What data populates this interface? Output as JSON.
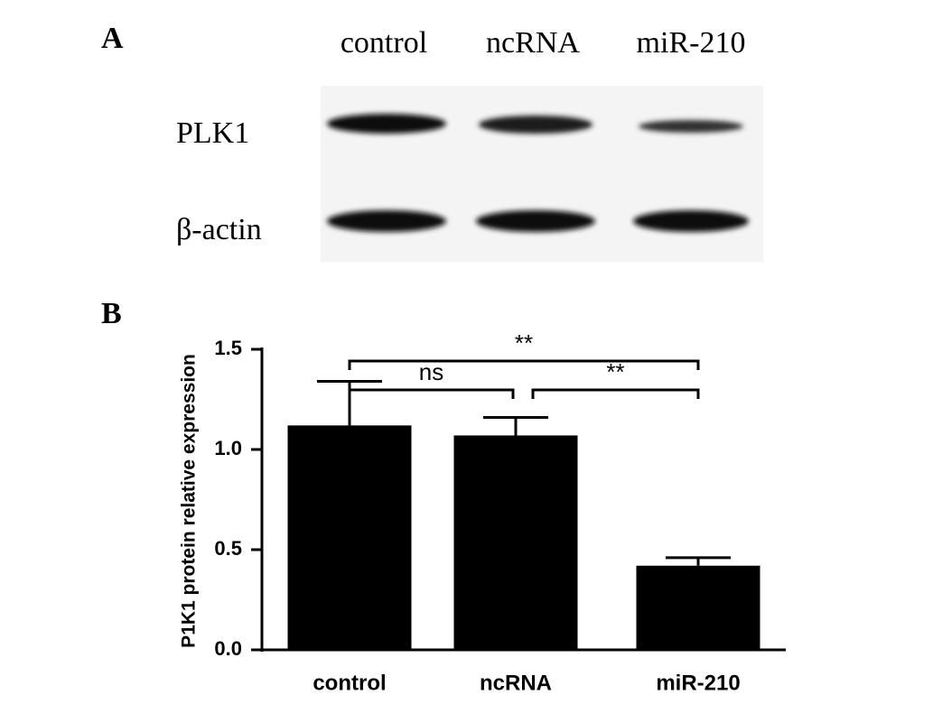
{
  "blot": {
    "panel_label": "A",
    "lanes": [
      "control",
      "ncRNA",
      "miR-210"
    ],
    "rows": [
      "PLK1",
      "β-actin"
    ]
  },
  "chart_data": {
    "type": "bar",
    "panel_label": "B",
    "y_label": "P1K1 protein relative expression",
    "categories": [
      "control",
      "ncRNA",
      "miR-210"
    ],
    "values": [
      1.12,
      1.07,
      0.42
    ],
    "errors": [
      0.22,
      0.09,
      0.04
    ],
    "color": "#000000",
    "ylim": [
      0,
      1.5
    ],
    "yticks": [
      {
        "value": 0,
        "label": "0.0"
      },
      0.5,
      {
        "value": 1,
        "label": "1.0"
      },
      1.5
    ],
    "annotations": [
      "ns",
      "**",
      "**"
    ]
  }
}
